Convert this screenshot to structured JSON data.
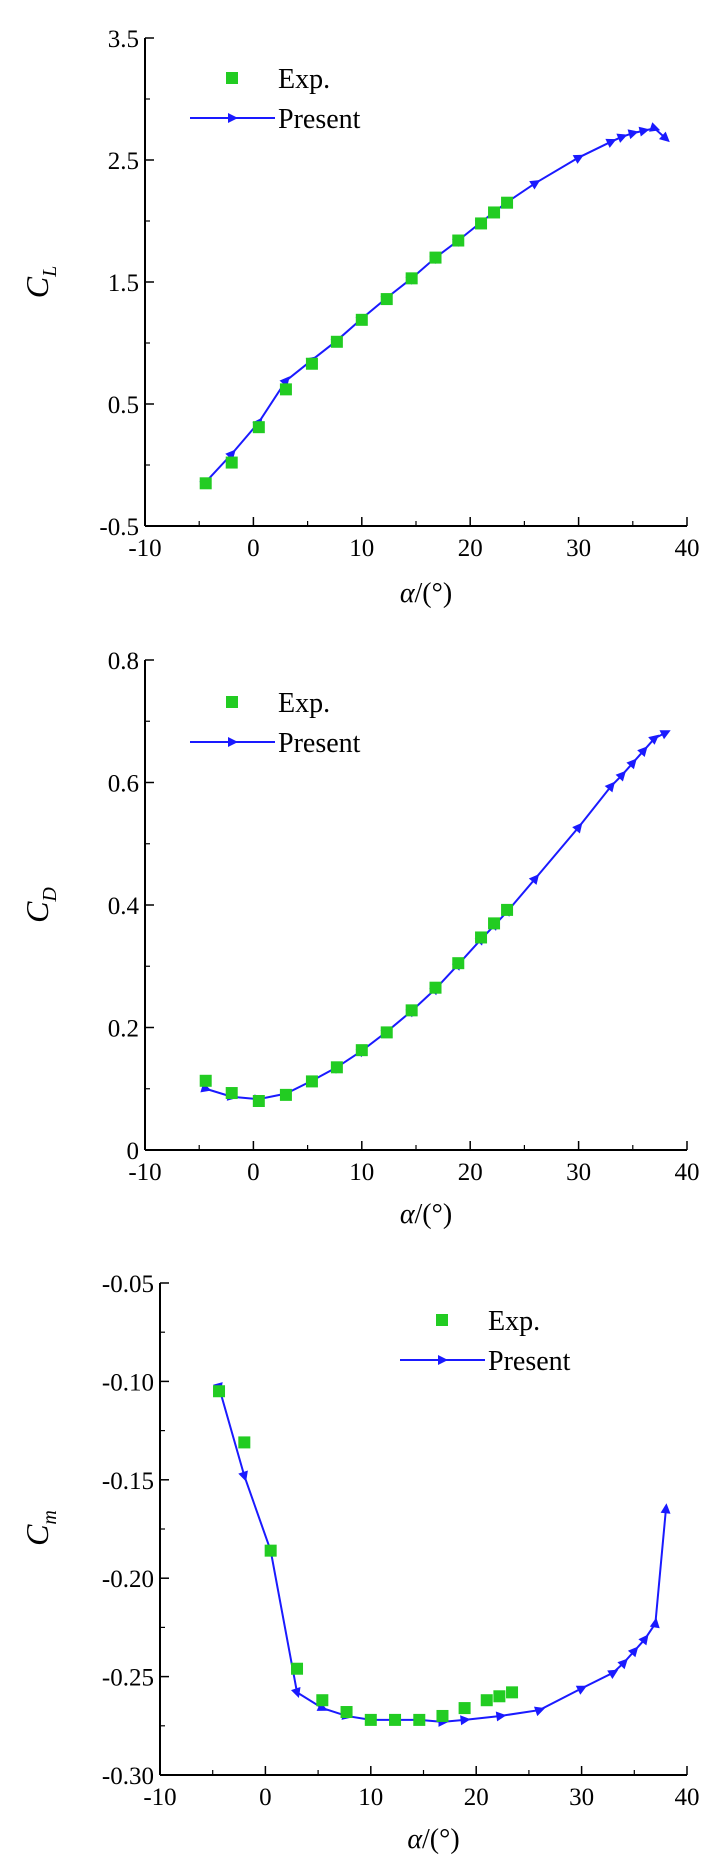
{
  "colors": {
    "exp": "#22cc22",
    "present": "#1a1aff",
    "axis": "#000000"
  },
  "legend": {
    "exp_label": "Exp.",
    "present_label": "Present"
  },
  "chart_data": [
    {
      "type": "scatter",
      "id": "cl",
      "ylabel": "C_L",
      "ylabel_main": "C",
      "ylabel_sub": "L",
      "xlabel": "α/(°)",
      "xlabel_alpha": "α",
      "xlabel_unit": "/(°)",
      "xlim": [
        -10,
        40
      ],
      "ylim": [
        -0.5,
        3.5
      ],
      "xticks": [
        "-10",
        "0",
        "10",
        "20",
        "30",
        "40"
      ],
      "yticks": [
        "-0.5",
        "0.5",
        "1.5",
        "2.5",
        "3.5"
      ],
      "legend_position": "top-left",
      "series": [
        {
          "name": "Exp.",
          "x": [
            -4.4,
            -2.0,
            0.5,
            3.0,
            5.4,
            7.7,
            10.0,
            12.3,
            14.6,
            16.8,
            18.9,
            21.0,
            22.2,
            23.4
          ],
          "y": [
            -0.15,
            0.02,
            0.31,
            0.62,
            0.83,
            1.01,
            1.19,
            1.36,
            1.53,
            1.7,
            1.84,
            1.98,
            2.07,
            2.15
          ]
        },
        {
          "name": "Present",
          "x": [
            -4.4,
            -2.0,
            0.5,
            3.0,
            5.4,
            7.7,
            10.0,
            12.3,
            14.6,
            16.8,
            18.9,
            21.0,
            22.3,
            23.5,
            26.0,
            30.0,
            33.0,
            34.0,
            35.0,
            36.0,
            37.0,
            38.0
          ],
          "y": [
            -0.14,
            0.09,
            0.35,
            0.69,
            0.86,
            1.02,
            1.2,
            1.37,
            1.53,
            1.7,
            1.84,
            1.99,
            2.08,
            2.16,
            2.31,
            2.52,
            2.65,
            2.69,
            2.72,
            2.74,
            2.76,
            2.68
          ]
        }
      ]
    },
    {
      "type": "scatter",
      "id": "cd",
      "ylabel": "C_D",
      "ylabel_main": "C",
      "ylabel_sub": "D",
      "xlabel": "α/(°)",
      "xlabel_alpha": "α",
      "xlabel_unit": "/(°)",
      "xlim": [
        -10,
        40
      ],
      "ylim": [
        0,
        0.8
      ],
      "xticks": [
        "-10",
        "0",
        "10",
        "20",
        "30",
        "40"
      ],
      "yticks": [
        "0",
        "0.2",
        "0.4",
        "0.6",
        "0.8"
      ],
      "legend_position": "top-left",
      "series": [
        {
          "name": "Exp.",
          "x": [
            -4.4,
            -2.0,
            0.5,
            3.0,
            5.4,
            7.7,
            10.0,
            12.3,
            14.6,
            16.8,
            18.9,
            21.0,
            22.2,
            23.4
          ],
          "y": [
            0.113,
            0.093,
            0.08,
            0.09,
            0.112,
            0.135,
            0.163,
            0.192,
            0.228,
            0.265,
            0.305,
            0.347,
            0.37,
            0.392
          ]
        },
        {
          "name": "Present",
          "x": [
            -4.4,
            -2.0,
            0.5,
            3.0,
            5.4,
            7.7,
            10.0,
            12.3,
            14.6,
            16.8,
            18.9,
            21.0,
            22.3,
            23.5,
            26.0,
            30.0,
            33.0,
            34.0,
            35.0,
            36.0,
            37.0,
            38.0
          ],
          "y": [
            0.1,
            0.087,
            0.083,
            0.092,
            0.113,
            0.135,
            0.162,
            0.193,
            0.227,
            0.263,
            0.303,
            0.344,
            0.368,
            0.391,
            0.443,
            0.527,
            0.594,
            0.612,
            0.632,
            0.652,
            0.672,
            0.681
          ]
        }
      ]
    },
    {
      "type": "scatter",
      "id": "cm",
      "ylabel": "C_m",
      "ylabel_main": "C",
      "ylabel_sub": "m",
      "xlabel": "α/(°)",
      "xlabel_alpha": "α",
      "xlabel_unit": "/(°)",
      "xlim": [
        -10,
        40
      ],
      "ylim": [
        -0.3,
        -0.05
      ],
      "xticks": [
        "-10",
        "0",
        "10",
        "20",
        "30",
        "40"
      ],
      "yticks": [
        "-0.30",
        "-0.25",
        "-0.20",
        "-0.15",
        "-0.10",
        "-0.05"
      ],
      "legend_position": "top-right",
      "series": [
        {
          "name": "Exp.",
          "x": [
            -4.4,
            -2.0,
            0.5,
            3.0,
            5.4,
            7.7,
            10.0,
            12.3,
            14.6,
            16.8,
            18.9,
            21.0,
            22.2,
            23.4
          ],
          "y": [
            -0.105,
            -0.131,
            -0.186,
            -0.246,
            -0.262,
            -0.268,
            -0.272,
            -0.272,
            -0.272,
            -0.27,
            -0.266,
            -0.262,
            -0.26,
            -0.258
          ]
        },
        {
          "name": "Present",
          "x": [
            -4.4,
            -2.0,
            0.5,
            3.0,
            5.4,
            7.7,
            10.0,
            12.3,
            14.6,
            16.8,
            18.9,
            22.3,
            26.0,
            30.0,
            33.0,
            34.0,
            35.0,
            36.0,
            37.0,
            38.0
          ],
          "y": [
            -0.103,
            -0.148,
            -0.186,
            -0.258,
            -0.266,
            -0.27,
            -0.272,
            -0.272,
            -0.272,
            -0.273,
            -0.272,
            -0.27,
            -0.267,
            -0.256,
            -0.248,
            -0.243,
            -0.237,
            -0.231,
            -0.223,
            -0.165
          ]
        }
      ]
    }
  ]
}
